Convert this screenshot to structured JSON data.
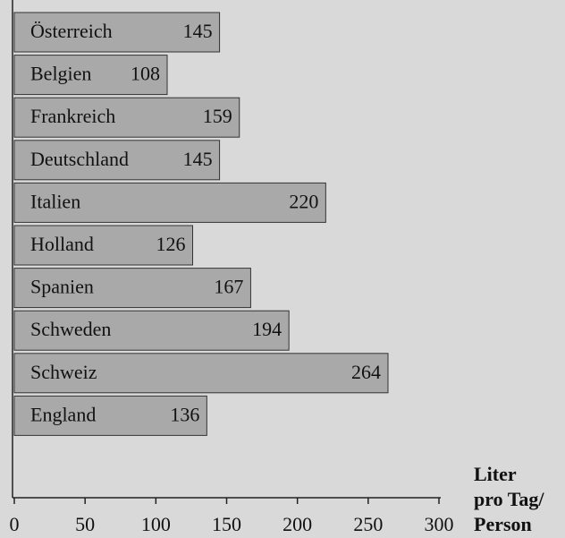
{
  "chart_data": {
    "type": "bar",
    "orientation": "horizontal",
    "categories": [
      "Österreich",
      "Belgien",
      "Frankreich",
      "Deutschland",
      "Italien",
      "Holland",
      "Spanien",
      "Schweden",
      "Schweiz",
      "England"
    ],
    "values": [
      145,
      108,
      159,
      145,
      220,
      126,
      167,
      194,
      264,
      136
    ],
    "color": "#a9a9a9",
    "xlim": [
      0,
      300
    ],
    "xticks": [
      0,
      50,
      100,
      150,
      200,
      250,
      300
    ],
    "xlabel": [
      "Liter",
      "pro Tag/",
      "Person"
    ]
  }
}
